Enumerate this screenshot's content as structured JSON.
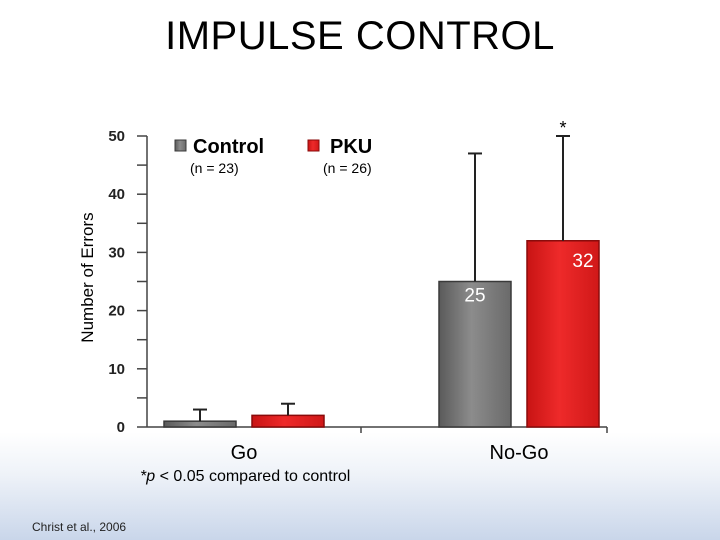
{
  "slide": {
    "title": "IMPULSE CONTROL",
    "citation": "Christ et al., 2006",
    "footnote_italic": "*p",
    "footnote_rest": " < 0.05 compared to control"
  },
  "colors": {
    "control": "#7a7a7a",
    "pku": "#e41e1e",
    "accent": "#c9d6ea"
  },
  "chart_data": {
    "type": "bar",
    "ylabel": "Number of Errors",
    "ylim": [
      0,
      50
    ],
    "yticks": [
      0,
      10,
      20,
      30,
      40,
      50
    ],
    "categories": [
      "Go",
      "No-Go"
    ],
    "series": [
      {
        "name": "Control",
        "n_label": "(n = 23)",
        "values": [
          1,
          25
        ],
        "error": [
          2,
          22
        ],
        "data_labels": [
          "",
          "25"
        ],
        "color": "#7a7a7a"
      },
      {
        "name": "PKU",
        "n_label": "(n = 26)",
        "values": [
          2,
          32
        ],
        "error": [
          2,
          18
        ],
        "data_labels": [
          "",
          "32"
        ],
        "color": "#e41e1e"
      }
    ],
    "annotations": [
      {
        "text": "*",
        "category": "No-Go",
        "series": "PKU"
      }
    ],
    "legend_position": "top-left",
    "grid": false
  }
}
